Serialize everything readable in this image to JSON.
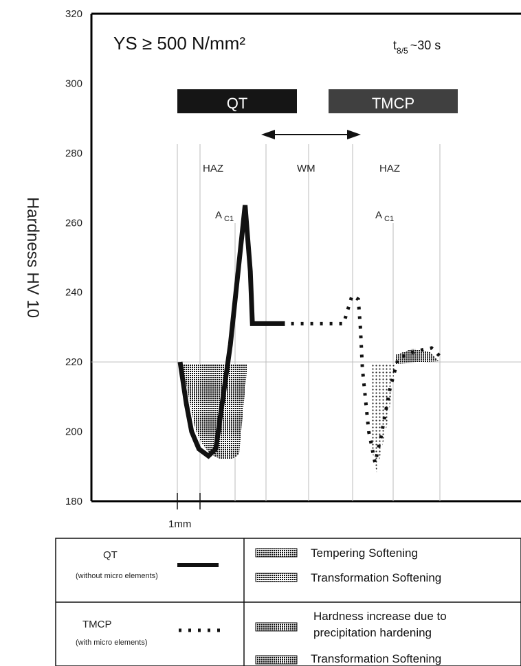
{
  "chart_data": {
    "type": "line",
    "title": "YS ≥ 500 N/mm²",
    "annotation_right": "~30 s",
    "annotation_t_base": "t",
    "annotation_t_sub": "8/5",
    "ylabel": "Hardness HV 10",
    "ylim": [
      180,
      320
    ],
    "y_ticks": [
      180,
      200,
      220,
      240,
      260,
      280,
      300,
      320
    ],
    "grid": "vertical lines at zone boundaries and horizontal line at 220",
    "scale_bar_label": "1mm",
    "bars": [
      {
        "label": "QT",
        "color": "#151515"
      },
      {
        "label": "TMCP",
        "color": "#404040"
      }
    ],
    "zones": [
      "HAZ",
      "WM",
      "HAZ"
    ],
    "ac1_base": "A",
    "ac1_sub": "C1",
    "series": [
      {
        "name": "QT",
        "style": "solid",
        "x_mm": [
          0,
          0.3,
          0.55,
          0.9,
          1.35,
          1.7,
          2.4,
          3.1,
          3.35,
          3.45,
          4.0,
          5.0
        ],
        "y": [
          220,
          208,
          200,
          195,
          193,
          195,
          225,
          265,
          246,
          231,
          231,
          231
        ]
      },
      {
        "name": "TMCP",
        "style": "dotted",
        "x_mm": [
          5.3,
          7.8,
          8.2,
          8.5,
          8.6,
          8.7,
          9.0,
          9.3,
          9.6,
          10.0,
          10.4,
          11.2,
          12.0,
          12.5
        ],
        "y": [
          231,
          231,
          239,
          238,
          230,
          218,
          200,
          191,
          199,
          212,
          221,
          223,
          224,
          221
        ]
      }
    ],
    "legend": {
      "rows": [
        {
          "line_name": "QT",
          "line_note": "(without micro elements)",
          "items": [
            "Tempering Softening",
            "Transformation Softening"
          ]
        },
        {
          "line_name": "TMCP",
          "line_note": "(with micro elements)",
          "items": [
            "Hardness increase due to",
            "precipitation hardening",
            "Transformation Softening"
          ]
        }
      ]
    }
  }
}
